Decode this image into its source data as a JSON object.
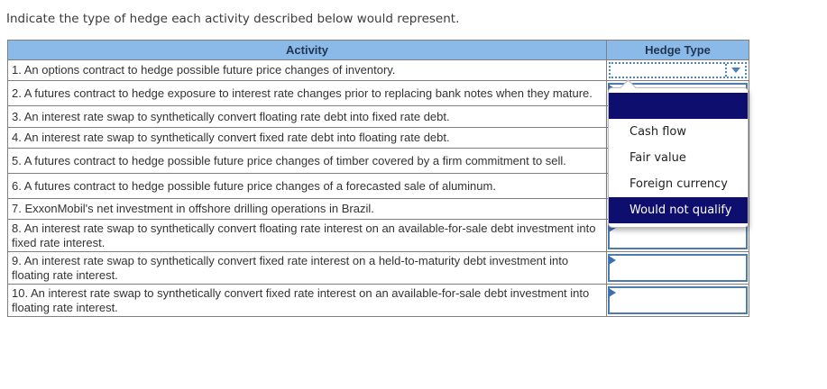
{
  "page": {
    "title": "Indicate the type of hedge each activity described below would represent."
  },
  "table": {
    "headers": {
      "activity": "Activity",
      "hedge_type": "Hedge Type"
    },
    "rows": [
      {
        "activity": "1. An options contract to hedge possible future price changes of inventory."
      },
      {
        "activity": "2. A futures contract to hedge exposure to interest rate changes prior to replacing bank notes when they mature."
      },
      {
        "activity": "3. An interest rate swap to synthetically convert floating rate debt into fixed rate debt."
      },
      {
        "activity": "4. An interest rate swap to synthetically convert fixed rate debt into floating rate debt."
      },
      {
        "activity": "5. A futures contract to hedge possible future price changes of timber covered by a firm commitment to sell."
      },
      {
        "activity": "6. A futures contract to hedge possible future price changes of a forecasted sale of aluminum."
      },
      {
        "activity": "7. ExxonMobil's net investment in offshore drilling operations in Brazil."
      },
      {
        "activity": "8. An interest rate swap to synthetically convert floating rate interest on an available-for-sale debt investment into fixed rate interest."
      },
      {
        "activity": "9. An interest rate swap to synthetically convert fixed rate interest on a held-to-maturity debt investment into floating rate interest."
      },
      {
        "activity": "10. An interest rate swap to synthetically convert fixed rate interest on an available-for-sale debt investment into floating rate interest."
      }
    ]
  },
  "dropdown": {
    "open_for_row": 1,
    "selected_value": "",
    "options": [
      {
        "label": "",
        "highlighted": true
      },
      {
        "label": "Cash flow",
        "highlighted": false
      },
      {
        "label": "Fair value",
        "highlighted": false
      },
      {
        "label": "Foreign currency",
        "highlighted": false
      },
      {
        "label": "Would not qualify",
        "highlighted": true
      }
    ]
  },
  "colors": {
    "header_bg": "#8CBAE8",
    "header_text": "#1F3550",
    "row_text": "#333333",
    "table_border": "#808080",
    "select_border": "#4E7BAE",
    "focus_dotted": "#4A86C8",
    "arrow": "#4A7EC0",
    "marker": "#3A6FB8",
    "highlight": "#0E0E6E",
    "highlight_text": "#FFFFFF",
    "popup_border": "#BBBBBB"
  }
}
